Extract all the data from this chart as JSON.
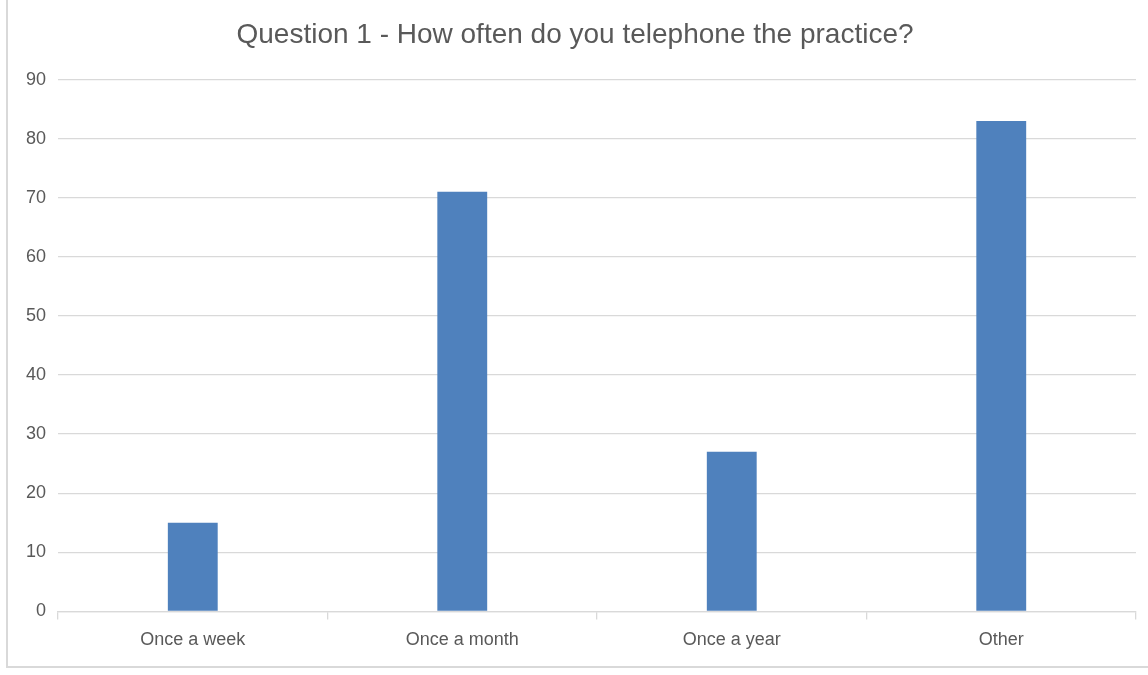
{
  "chart_data": {
    "type": "bar",
    "title": "Question 1 - How often do you telephone the practice?",
    "categories": [
      "Once a week",
      "Once a month",
      "Once a year",
      "Other"
    ],
    "values": [
      15,
      71,
      27,
      83
    ],
    "color": "#4f81bd",
    "ylim": [
      0,
      90
    ],
    "yticks": [
      0,
      10,
      20,
      30,
      40,
      50,
      60,
      70,
      80,
      90
    ],
    "grid": "y"
  }
}
